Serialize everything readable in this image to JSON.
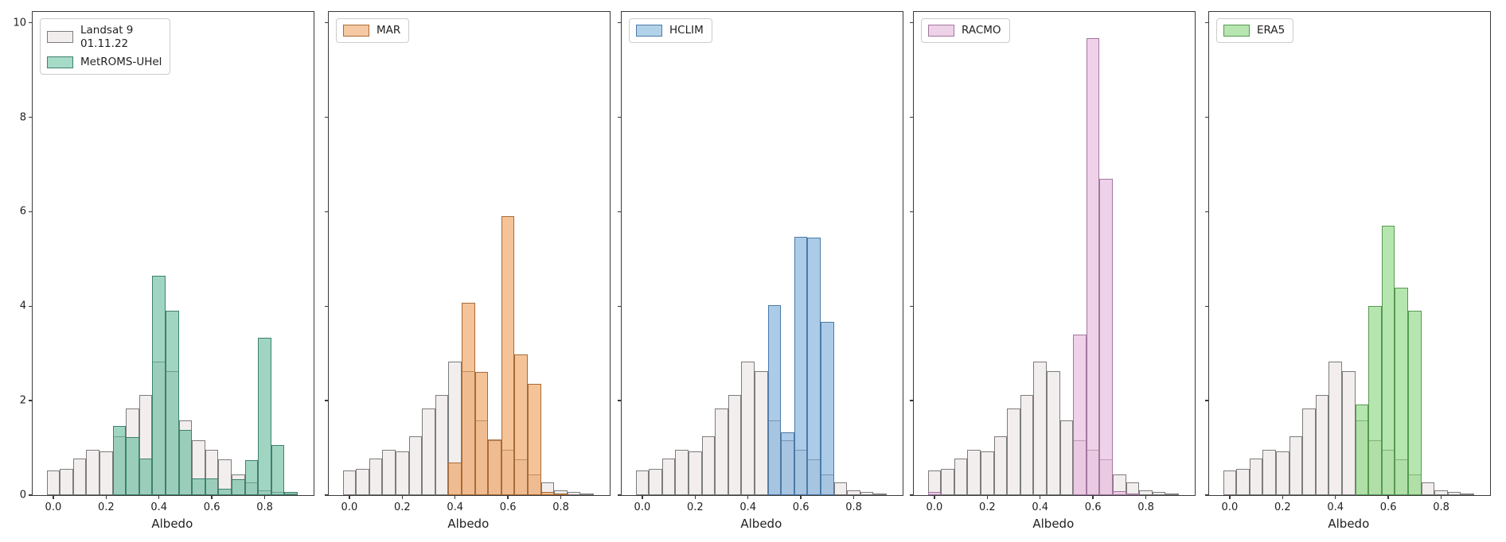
{
  "figure": {
    "kind": "histogram-comparison-figure",
    "background": "#ffffff",
    "n_panels": 5
  },
  "axis": {
    "xlabel": "Albedo",
    "x_tick_labels": [
      "0.0",
      "0.2",
      "0.4",
      "0.6",
      "0.8"
    ],
    "x_tick_values": [
      0.0,
      0.2,
      0.4,
      0.6,
      0.8
    ],
    "y_tick_labels": [
      "0",
      "2",
      "4",
      "6",
      "8",
      "10"
    ],
    "y_tick_values": [
      0,
      2,
      4,
      6,
      8,
      10
    ]
  },
  "legend_labels": {
    "reference_line1": "Landsat 9",
    "reference_line2": "01.11.22",
    "panel1_model": "MetROMS-UHel",
    "panel2_model": "MAR",
    "panel3_model": "HCLIM",
    "panel4_model": "RACMO",
    "panel5_model": "ERA5"
  },
  "chart_data": {
    "type": "bar",
    "subtype": "overlaid-histograms",
    "title": "",
    "xlabel": "Albedo",
    "ylabel": "",
    "xlim": [
      -0.078,
      0.985
    ],
    "ylim": [
      0,
      10.23
    ],
    "grid": false,
    "legend_position": "upper-left",
    "bin_width": 0.05,
    "bin_centers": [
      0.0,
      0.05,
      0.1,
      0.15,
      0.2,
      0.25,
      0.3,
      0.35,
      0.4,
      0.45,
      0.5,
      0.55,
      0.6,
      0.65,
      0.7,
      0.75,
      0.8,
      0.85,
      0.9
    ],
    "reference_series": {
      "name": "Landsat 9 01.11.22",
      "legend_lines": [
        "Landsat 9",
        "01.11.22"
      ],
      "fill": "#f2eeed",
      "edge": "#7c7c7c",
      "values": [
        0.52,
        0.56,
        0.77,
        0.96,
        0.93,
        1.24,
        1.84,
        2.12,
        2.82,
        2.62,
        1.58,
        1.16,
        0.96,
        0.75,
        0.43,
        0.27,
        0.1,
        0.06,
        0.02
      ]
    },
    "panels": [
      {
        "model": "MetROMS-UHel",
        "fill_base_rgb": [
          96,
          185,
          152
        ],
        "fill_alpha": 0.6,
        "fill_hex_on_white": "#a6dbc7",
        "edge": "#3f8070",
        "values": [
          0,
          0,
          0,
          0,
          0,
          1.46,
          1.23,
          0.78,
          4.64,
          3.9,
          1.38,
          0.35,
          0.36,
          0.13,
          0.33,
          0.74,
          3.33,
          1.06,
          0.06
        ]
      },
      {
        "model": "MAR",
        "fill_base_rgb": [
          236,
          155,
          84
        ],
        "fill_alpha": 0.6,
        "fill_hex_on_white": "#f4c9a3",
        "edge": "#a96b36",
        "values": [
          0,
          0,
          0,
          0,
          0,
          0,
          0,
          0,
          0.69,
          4.07,
          2.6,
          1.18,
          5.9,
          2.98,
          2.36,
          0.07,
          0.02,
          0,
          0
        ]
      },
      {
        "model": "HCLIM",
        "fill_base_rgb": [
          116,
          169,
          216
        ],
        "fill_alpha": 0.6,
        "fill_hex_on_white": "#b2d2e9",
        "edge": "#4a7ba6",
        "values": [
          0,
          0,
          0,
          0,
          0,
          0,
          0,
          0,
          0,
          0,
          4.03,
          1.33,
          5.47,
          5.45,
          3.66,
          0,
          0,
          0,
          0
        ]
      },
      {
        "model": "RACMO",
        "fill_base_rgb": [
          228,
          178,
          218
        ],
        "fill_alpha": 0.6,
        "fill_hex_on_white": "#eed2e8",
        "edge": "#a277a0",
        "values": [
          0.07,
          0,
          0,
          0,
          0,
          0,
          0,
          0,
          0,
          0,
          0,
          3.4,
          9.68,
          6.7,
          0.08,
          0.02,
          0,
          0,
          0
        ]
      },
      {
        "model": "ERA5",
        "fill_base_rgb": [
          134,
          214,
          122
        ],
        "fill_alpha": 0.6,
        "fill_hex_on_white": "#b7e6b0",
        "edge": "#569a50",
        "values": [
          0,
          0,
          0,
          0,
          0,
          0,
          0,
          0,
          0,
          0,
          1.91,
          4.0,
          5.7,
          4.4,
          3.9,
          0,
          0,
          0,
          0
        ]
      }
    ]
  }
}
